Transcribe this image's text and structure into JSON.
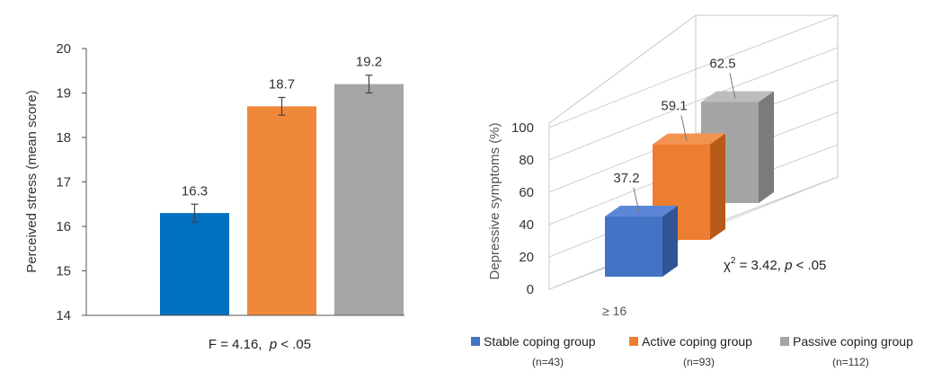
{
  "chart_data": [
    {
      "type": "bar",
      "ylabel": "Perceived stress (mean score)",
      "ylim": [
        14,
        20
      ],
      "yticks": [
        "14",
        "15",
        "16",
        "17",
        "18",
        "19",
        "20"
      ],
      "series": [
        {
          "name": "Stable coping group",
          "value": 16.3,
          "label": "16.3",
          "err": 0.2,
          "color": "#0070C0"
        },
        {
          "name": "Active coping group",
          "value": 18.7,
          "label": "18.7",
          "err": 0.2,
          "color": "#F0883A"
        },
        {
          "name": "Passive coping group",
          "value": 19.2,
          "label": "19.2",
          "err": 0.2,
          "color": "#A6A6A6"
        }
      ],
      "annotation": {
        "prefix": "F = 4.16,  ",
        "p": "p",
        "suffix": " < .05"
      }
    },
    {
      "type": "bar",
      "style": "3d",
      "ylabel": "Depressive symptoms (%)",
      "ylim": [
        0,
        100
      ],
      "yticks": [
        "0",
        "20",
        "40",
        "60",
        "80",
        "100"
      ],
      "category": "≥ 16",
      "series": [
        {
          "name": "Stable coping group",
          "value": 37.2,
          "label": "37.2",
          "color": "#4472C4"
        },
        {
          "name": "Active coping group",
          "value": 59.1,
          "label": "59.1",
          "color": "#ED7D31"
        },
        {
          "name": "Passive coping group",
          "value": 62.5,
          "label": "62.5",
          "color": "#A5A5A5"
        }
      ],
      "annotation": {
        "chi": "χ",
        "sup": "2",
        "prefix": " = 3.42, ",
        "p": "p",
        "suffix": " < .05"
      }
    }
  ],
  "legend": [
    {
      "label": "Stable coping group",
      "n": "(n=43)",
      "color": "#4472C4"
    },
    {
      "label": "Active coping group",
      "n": "(n=93)",
      "color": "#ED7D31"
    },
    {
      "label": "Passive coping group",
      "n": "(n=112)",
      "color": "#A5A5A5"
    }
  ]
}
